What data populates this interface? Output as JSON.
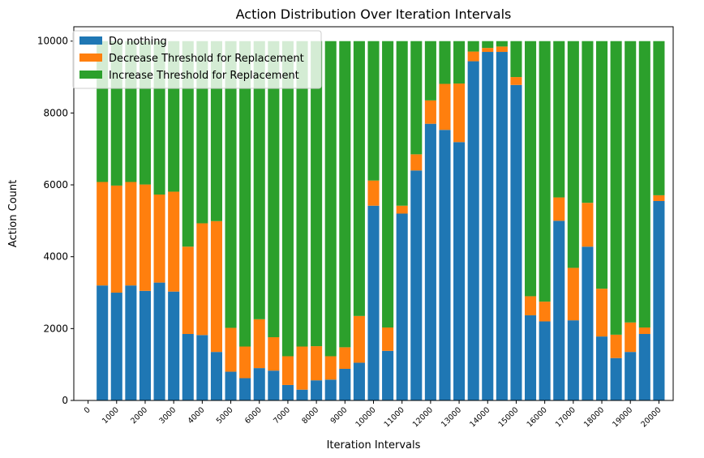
{
  "chart_data": {
    "type": "bar",
    "stacked": true,
    "title": "Action Distribution Over Iteration Intervals",
    "xlabel": "Iteration Intervals",
    "ylabel": "Action Count",
    "ylim": [
      0,
      10400
    ],
    "yticks": [
      0,
      2000,
      4000,
      6000,
      8000,
      10000
    ],
    "xlim": [
      -500,
      20500
    ],
    "xticks": [
      0,
      1000,
      2000,
      3000,
      4000,
      5000,
      6000,
      7000,
      8000,
      9000,
      10000,
      11000,
      12000,
      13000,
      14000,
      15000,
      16000,
      17000,
      18000,
      19000,
      20000
    ],
    "bar_width": 400,
    "legend_position": "top-left",
    "grid": false,
    "x": [
      500,
      1000,
      1500,
      2000,
      2500,
      3000,
      3500,
      4000,
      4500,
      5000,
      5500,
      6000,
      6500,
      7000,
      7500,
      8000,
      8500,
      9000,
      9500,
      10000,
      10500,
      11000,
      11500,
      12000,
      12500,
      13000,
      13500,
      14000,
      14500,
      15000,
      15500,
      16000,
      16500,
      17000,
      17500,
      18000,
      18500,
      19000,
      19500,
      20000
    ],
    "series": [
      {
        "name": "Do nothing",
        "color": "#1f77b4",
        "values": [
          3200,
          3000,
          3200,
          3050,
          3280,
          3030,
          1850,
          1820,
          1350,
          800,
          620,
          900,
          830,
          430,
          300,
          560,
          580,
          880,
          1050,
          5420,
          1380,
          5200,
          6400,
          7700,
          7530,
          7190,
          9440,
          9700,
          9700,
          8780,
          2370,
          2200,
          5000,
          2230,
          4280,
          1780,
          1180,
          1350,
          1850,
          5550
        ]
      },
      {
        "name": "Decrease Threshold for Replacement",
        "color": "#ff7f0e",
        "values": [
          2880,
          2980,
          2880,
          2960,
          2450,
          2780,
          2430,
          3110,
          3640,
          1220,
          880,
          1360,
          930,
          800,
          1200,
          950,
          650,
          600,
          1300,
          700,
          650,
          220,
          450,
          650,
          1280,
          1630,
          270,
          110,
          150,
          220,
          530,
          550,
          650,
          1460,
          1220,
          1330,
          650,
          820,
          180,
          160
        ]
      },
      {
        "name": "Increase Threshold for Replacement",
        "color": "#2ca02c",
        "values": [
          3920,
          4020,
          3920,
          3990,
          4270,
          4190,
          5720,
          5070,
          5010,
          7980,
          8500,
          7740,
          8240,
          8770,
          8500,
          8490,
          8770,
          8520,
          7650,
          3880,
          7970,
          4580,
          3150,
          1650,
          1190,
          1180,
          290,
          190,
          150,
          1000,
          7100,
          7250,
          4350,
          6310,
          4500,
          6890,
          8170,
          7830,
          7970,
          4290
        ]
      }
    ]
  }
}
